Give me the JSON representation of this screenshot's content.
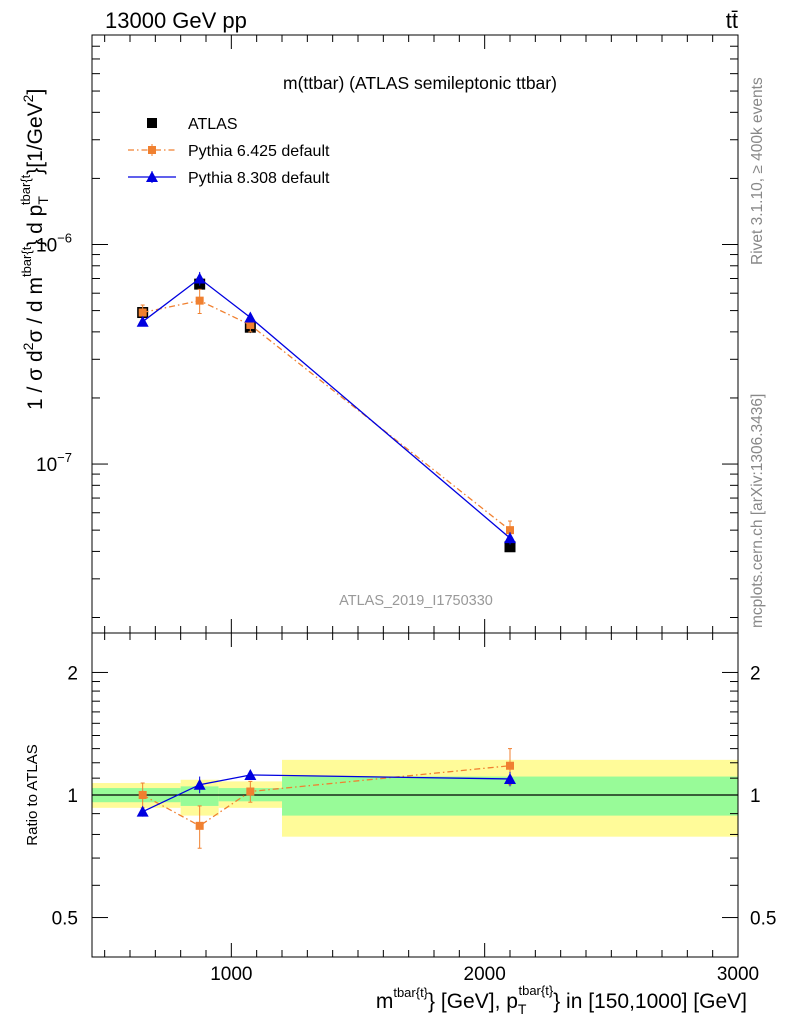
{
  "header": {
    "left": "13000 GeV pp",
    "right": "tt̄"
  },
  "side_labels": {
    "rivet": "Rivet 3.1.10, ≥ 400k events",
    "mcplots": "mcplots.cern.ch [arXiv:1306.3436]"
  },
  "colors": {
    "atlas": "#000000",
    "pythia6": "#f08030",
    "pythia8": "#0000e0",
    "band_inner": "#98fb98",
    "band_outer": "#fffb99"
  },
  "chart_data": [
    {
      "type": "line",
      "panel": "main",
      "title": "m(ttbar) (ATLAS semileptonic ttbar)",
      "watermark": "ATLAS_2019_I1750330",
      "ylabel": "1 / σ d²σ / d m^{tbar{t}} d p_T^{tbar{t}} [1/GeV²]",
      "ylabel_parts": {
        "pre": "1 / σ d",
        "sup2a": "2",
        "mid1": "σ / d m",
        "sup_m": "tbar{t",
        "mid2": "} d p",
        "sub_t": "T",
        "sup_p": "tbar{t",
        "post": "}[1/GeV",
        "sup2b": "2",
        "close": "]"
      },
      "yscale": "log",
      "xlim": [
        450,
        3000
      ],
      "ylim": [
        1.7e-08,
        9e-06
      ],
      "ytick_labels": [
        {
          "value": 1e-07,
          "mantissa": "10",
          "exp": "−7"
        },
        {
          "value": 1e-06,
          "mantissa": "10",
          "exp": "−6"
        }
      ],
      "legend_position": "top-left",
      "series": [
        {
          "name": "ATLAS",
          "marker": "square",
          "x": [
            650,
            875,
            1075,
            2100
          ],
          "y": [
            4.9e-07,
            6.6e-07,
            4.2e-07,
            4.2e-08
          ],
          "yerr": [
            3e-08,
            4e-08,
            2.5e-08,
            2e-09
          ]
        },
        {
          "name": "Pythia 6.425 default",
          "marker": "square",
          "style": "dash-dot",
          "x": [
            650,
            875,
            1075,
            2100
          ],
          "y": [
            4.9e-07,
            5.55e-07,
            4.3e-07,
            5e-08
          ],
          "yerr": [
            4e-08,
            7e-08,
            3e-08,
            5e-09
          ]
        },
        {
          "name": "Pythia 8.308 default",
          "marker": "triangle",
          "style": "solid",
          "x": [
            650,
            875,
            1075,
            2100
          ],
          "y": [
            4.45e-07,
            7e-07,
            4.65e-07,
            4.6e-08
          ],
          "yerr": [
            2e-08,
            5e-08,
            2e-08,
            3e-09
          ]
        }
      ]
    },
    {
      "type": "line",
      "panel": "ratio",
      "ylabel": "Ratio to ATLAS",
      "xlabel": "m^{tbar{t}} [GeV], p_T^{tbar{t}} in [150,1000] [GeV]",
      "xlabel_parts": {
        "pre": "m",
        "sup1": "tbar{t}",
        "mid": "} [GeV], p",
        "sub_t": "T",
        "sup2": "tbar{t}",
        "post": "} in [150,1000] [GeV]"
      },
      "xlim": [
        450,
        3000
      ],
      "ylim": [
        0.4,
        2.5
      ],
      "yticks": [
        0.5,
        1,
        2
      ],
      "ytick_labels": [
        "0.5",
        "1",
        "2"
      ],
      "xticks": [
        1000,
        2000,
        3000
      ],
      "xtick_labels": [
        "1000",
        "2000",
        "3000"
      ],
      "bands": [
        {
          "x0": 450,
          "x1": 800,
          "inner": [
            0.96,
            1.04
          ],
          "outer": [
            0.93,
            1.07
          ]
        },
        {
          "x0": 800,
          "x1": 950,
          "inner": [
            0.94,
            1.05
          ],
          "outer": [
            0.89,
            1.09
          ]
        },
        {
          "x0": 950,
          "x1": 1200,
          "inner": [
            0.965,
            1.04
          ],
          "outer": [
            0.93,
            1.08
          ]
        },
        {
          "x0": 1200,
          "x1": 3000,
          "inner": [
            0.89,
            1.11
          ],
          "outer": [
            0.79,
            1.22
          ]
        }
      ],
      "series": [
        {
          "name": "Pythia 6.425 default",
          "marker": "square",
          "style": "dash-dot",
          "x": [
            650,
            875,
            1075,
            2100
          ],
          "y": [
            1.0,
            0.84,
            1.02,
            1.18
          ],
          "yerr": [
            0.07,
            0.1,
            0.06,
            0.12
          ]
        },
        {
          "name": "Pythia 8.308 default",
          "marker": "triangle",
          "style": "solid",
          "x": [
            650,
            875,
            1075,
            2100
          ],
          "y": [
            0.91,
            1.06,
            1.12,
            1.095
          ],
          "yerr": [
            0.025,
            0.05,
            0.03,
            0.045
          ]
        }
      ]
    }
  ]
}
